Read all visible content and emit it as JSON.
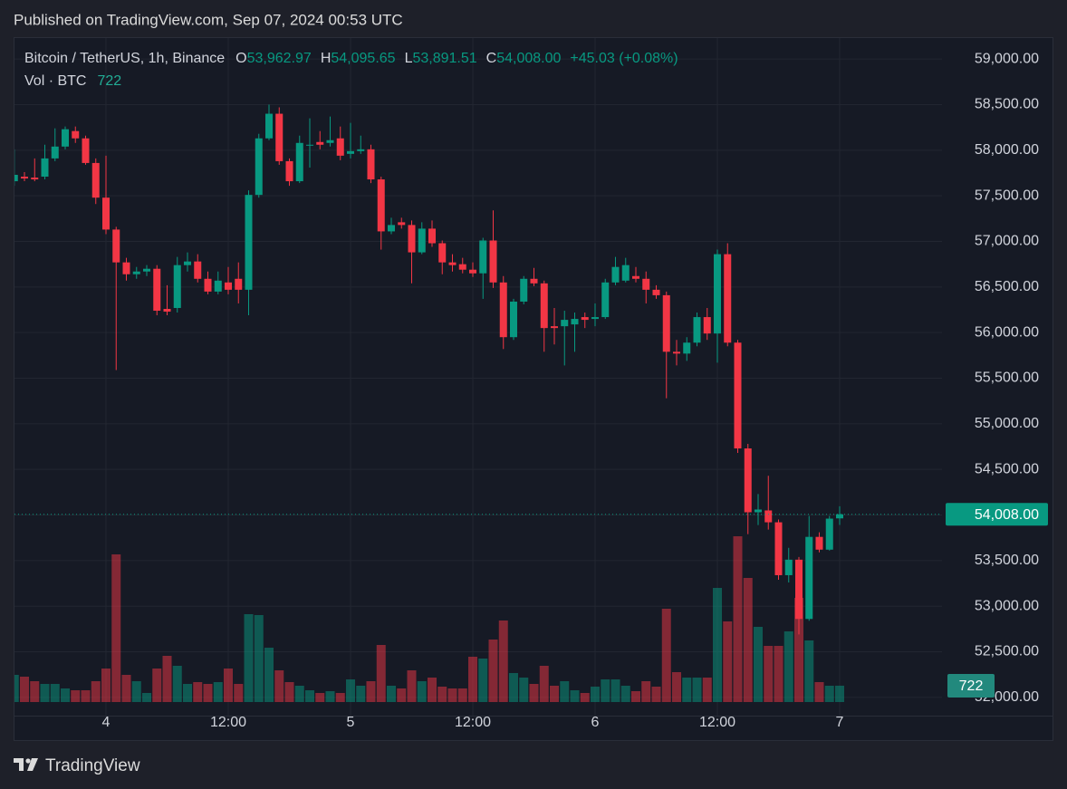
{
  "header": "Published on TradingView.com, Sep 07, 2024 00:53 UTC",
  "footer_brand": "TradingView",
  "chart_data": {
    "type": "candlestick",
    "legend": {
      "symbol": "Bitcoin / TetherUS, 1h, Binance",
      "ohlc": [
        {
          "key": "O",
          "value": "53,962.97"
        },
        {
          "key": "H",
          "value": "54,095.65"
        },
        {
          "key": "L",
          "value": "53,891.51"
        },
        {
          "key": "C",
          "value": "54,008.00"
        }
      ],
      "change": "+45.03 (+0.08%)",
      "volume_name": "Vol · BTC",
      "volume_value": "722"
    },
    "categories": [
      null,
      null,
      null,
      null,
      null,
      null,
      null,
      null,
      null,
      "4",
      null,
      null,
      null,
      null,
      null,
      null,
      null,
      null,
      null,
      null,
      null,
      "12:00",
      null,
      null,
      null,
      null,
      null,
      null,
      null,
      null,
      null,
      null,
      null,
      "5",
      null,
      null,
      null,
      null,
      null,
      null,
      null,
      null,
      null,
      null,
      null,
      "12:00",
      null,
      null,
      null,
      null,
      null,
      null,
      null,
      null,
      null,
      null,
      null,
      "6",
      null,
      null,
      null,
      null,
      null,
      null,
      null,
      null,
      null,
      null,
      null,
      "12:00",
      null,
      null,
      null,
      null,
      null,
      null,
      null,
      null,
      null,
      null,
      null,
      "7"
    ],
    "open": [
      57660,
      57710,
      57700,
      57710,
      57910,
      58040,
      58210,
      58130,
      57860,
      57480,
      57130,
      56770,
      56640,
      56670,
      56700,
      56260,
      56270,
      56740,
      56780,
      56590,
      56450,
      56550,
      56590,
      56470,
      57510,
      58130,
      58400,
      57880,
      57660,
      58050,
      58090,
      58080,
      58130,
      57960,
      57990,
      58010,
      57680,
      57110,
      57210,
      57180,
      56880,
      57140,
      56980,
      56770,
      56750,
      56690,
      56650,
      57010,
      56550,
      55950,
      56340,
      56590,
      56540,
      56070,
      56070,
      56090,
      56170,
      56150,
      56170,
      56550,
      56570,
      56620,
      56590,
      56470,
      56410,
      55790,
      55770,
      55890,
      56170,
      55990,
      56860,
      55890,
      54730,
      54030,
      54050,
      53920,
      53340,
      53510,
      52860,
      53760,
      53620,
      53962.97
    ],
    "high": [
      58010,
      57760,
      57910,
      58060,
      58240,
      58260,
      58260,
      58160,
      57910,
      57940,
      57160,
      56820,
      56720,
      56740,
      56740,
      56520,
      56830,
      56880,
      56860,
      56670,
      56670,
      56720,
      56770,
      57560,
      58180,
      58500,
      58470,
      57910,
      58160,
      58350,
      58210,
      58370,
      58260,
      58300,
      58160,
      58060,
      57710,
      57260,
      57260,
      57230,
      57210,
      57230,
      57010,
      56860,
      56820,
      56770,
      57040,
      57340,
      56620,
      56370,
      56620,
      56710,
      56570,
      56270,
      56240,
      56220,
      56220,
      56320,
      56590,
      56830,
      56820,
      56720,
      56670,
      56520,
      56450,
      55920,
      55950,
      56220,
      56270,
      56910,
      56980,
      55920,
      54780,
      54230,
      54430,
      53950,
      53640,
      53540,
      53990,
      53810,
      53990,
      54095.65
    ],
    "low": [
      57610,
      57660,
      57660,
      57680,
      57880,
      58010,
      58080,
      57840,
      57410,
      57080,
      55590,
      56570,
      56590,
      56620,
      56190,
      56190,
      56220,
      56670,
      56550,
      56420,
      56420,
      56420,
      56320,
      56190,
      57480,
      58110,
      57840,
      57610,
      57640,
      57810,
      58010,
      58040,
      57890,
      57910,
      57960,
      57640,
      56910,
      57080,
      57140,
      56540,
      56860,
      56940,
      56640,
      56670,
      56650,
      56610,
      56370,
      56490,
      55820,
      55920,
      56310,
      56510,
      55790,
      55870,
      55640,
      55790,
      56050,
      56070,
      56150,
      56520,
      56550,
      56550,
      56320,
      56370,
      55280,
      55640,
      55690,
      55850,
      55920,
      55670,
      55850,
      54680,
      53790,
      53890,
      53840,
      53290,
      53260,
      52690,
      52840,
      53590,
      53610,
      53891.51
    ],
    "close": [
      57730,
      57690,
      57680,
      57910,
      58040,
      58230,
      58130,
      57860,
      57480,
      57130,
      56770,
      56640,
      56670,
      56700,
      56240,
      56230,
      56740,
      56780,
      56590,
      56450,
      56570,
      56470,
      56470,
      57510,
      58130,
      58400,
      57880,
      57660,
      58080,
      58060,
      58060,
      58110,
      57940,
      57990,
      58010,
      57680,
      57110,
      57180,
      57180,
      56880,
      57140,
      56980,
      56770,
      56740,
      56690,
      56650,
      57010,
      56550,
      55950,
      56340,
      56590,
      56540,
      56050,
      56050,
      56140,
      56150,
      56140,
      56170,
      56550,
      56720,
      56740,
      56590,
      56470,
      56410,
      55790,
      55770,
      55890,
      56170,
      55990,
      56860,
      55890,
      54730,
      54030,
      54060,
      53920,
      53340,
      53510,
      52860,
      53760,
      53620,
      53960,
      54008
    ],
    "volume": [
      1200,
      1120,
      920,
      800,
      800,
      600,
      520,
      520,
      920,
      1480,
      6520,
      1200,
      920,
      400,
      1480,
      2040,
      1600,
      800,
      880,
      800,
      880,
      1480,
      800,
      3880,
      3840,
      2400,
      1400,
      880,
      720,
      520,
      400,
      480,
      400,
      1000,
      720,
      920,
      2520,
      720,
      600,
      1400,
      920,
      1080,
      680,
      600,
      600,
      2000,
      1920,
      2760,
      3600,
      1280,
      1080,
      800,
      1600,
      720,
      920,
      520,
      400,
      680,
      1000,
      1000,
      720,
      480,
      920,
      680,
      4120,
      1320,
      1080,
      1080,
      1080,
      5040,
      3560,
      7320,
      5480,
      3320,
      2480,
      2480,
      3120,
      4600,
      2720,
      880,
      720,
      722
    ],
    "up_color": "#089981",
    "down_color": "#f23645",
    "ylim": [
      51800,
      59230
    ],
    "yticks": [
      {
        "value": 52000,
        "label": "52,000.00"
      },
      {
        "value": 52500,
        "label": "52,500.00"
      },
      {
        "value": 53000,
        "label": "53,000.00"
      },
      {
        "value": 53500,
        "label": "53,500.00"
      },
      {
        "value": 54000,
        "label": "54,000.00"
      },
      {
        "value": 54500,
        "label": "54,500.00"
      },
      {
        "value": 55000,
        "label": "55,000.00"
      },
      {
        "value": 55500,
        "label": "55,500.00"
      },
      {
        "value": 56000,
        "label": "56,000.00"
      },
      {
        "value": 56500,
        "label": "56,500.00"
      },
      {
        "value": 57000,
        "label": "57,000.00"
      },
      {
        "value": 57500,
        "label": "57,500.00"
      },
      {
        "value": 58000,
        "label": "58,000.00"
      },
      {
        "value": 58500,
        "label": "58,500.00"
      },
      {
        "value": 59000,
        "label": "59,000.00"
      }
    ],
    "grid": true
  }
}
